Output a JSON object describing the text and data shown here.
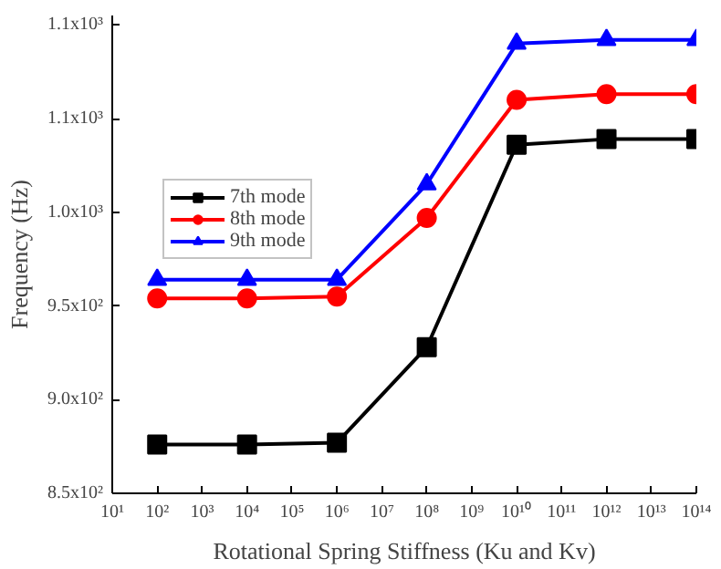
{
  "chart_data": {
    "type": "line",
    "xlabel": "Rotational Spring Stiffness (Ku and Kv)",
    "ylabel": "Frequency (Hz)",
    "x": [
      100,
      10000,
      1000000,
      100000000,
      10000000000,
      1000000000000,
      100000000000000
    ],
    "series": [
      {
        "name": "7th mode",
        "color": "#000000",
        "marker": "square",
        "values": [
          876,
          876,
          877,
          928,
          1036,
          1039,
          1039
        ]
      },
      {
        "name": "8th mode",
        "color": "#ff0000",
        "marker": "circle",
        "values": [
          954,
          954,
          955,
          997,
          1060,
          1063,
          1063
        ]
      },
      {
        "name": "9th mode",
        "color": "#0000ff",
        "marker": "triangle",
        "values": [
          964,
          964,
          964,
          1015,
          1090,
          1092,
          1092
        ]
      }
    ],
    "log": "x",
    "xlim": [
      10,
      100000000000000
    ],
    "ylim": [
      850,
      1105
    ],
    "xticks": [
      {
        "value": 10,
        "label": "10¹"
      },
      {
        "value": 100,
        "label": "10²"
      },
      {
        "value": 1000,
        "label": "10³"
      },
      {
        "value": 10000,
        "label": "10⁴"
      },
      {
        "value": 100000,
        "label": "10⁵"
      },
      {
        "value": 1000000,
        "label": "10⁶"
      },
      {
        "value": 10000000,
        "label": "10⁷"
      },
      {
        "value": 100000000,
        "label": "10⁸"
      },
      {
        "value": 1000000000,
        "label": "10⁹"
      },
      {
        "value": 10000000000,
        "label": "10¹⁰"
      },
      {
        "value": 100000000000,
        "label": "10¹¹"
      },
      {
        "value": 1000000000000,
        "label": "10¹²"
      },
      {
        "value": 10000000000000,
        "label": "10¹³"
      },
      {
        "value": 100000000000000,
        "label": "10¹⁴"
      }
    ],
    "yticks": [
      {
        "value": 850,
        "label": "8.5x10²"
      },
      {
        "value": 900,
        "label": "9.0x10²"
      },
      {
        "value": 950,
        "label": "9.5x10²"
      },
      {
        "value": 1000,
        "label": "1.0x10³"
      },
      {
        "value": 1050,
        "label": "1.1x10³"
      },
      {
        "value": 1100,
        "label": "1.1x10³"
      }
    ],
    "grid": false,
    "legend": "left",
    "line_style": "solid"
  }
}
